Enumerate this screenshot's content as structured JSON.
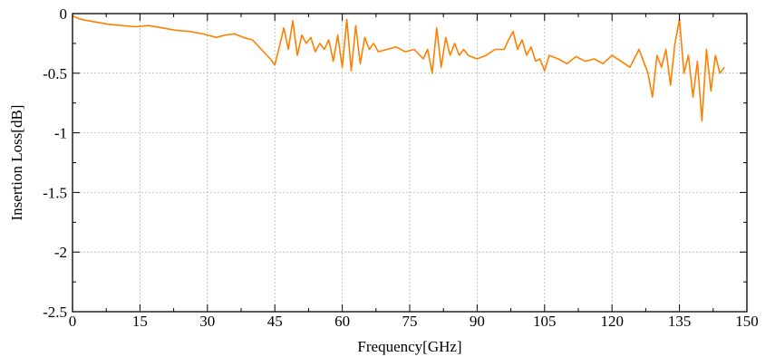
{
  "chart_data": {
    "type": "line",
    "title": "",
    "xlabel": "Frequency[GHz]",
    "ylabel": "Insertion Loss[dB]",
    "xlim": [
      0,
      150
    ],
    "ylim": [
      -2.5,
      0
    ],
    "xticks": [
      0,
      15,
      30,
      45,
      60,
      75,
      90,
      105,
      120,
      135,
      150
    ],
    "yticks": [
      0,
      -0.5,
      -1,
      -1.5,
      -2,
      -2.5
    ],
    "xtick_labels": [
      "0",
      "15",
      "30",
      "45",
      "60",
      "75",
      "90",
      "105",
      "120",
      "135",
      "150"
    ],
    "ytick_labels": [
      "0",
      "-0.5",
      "-1",
      "-1.5",
      "-2",
      "-2.5"
    ],
    "grid": true,
    "series": [
      {
        "color": "#ff8000",
        "x": [
          0,
          2,
          5,
          8,
          11,
          14,
          17,
          20,
          23,
          26,
          29,
          32,
          34,
          36,
          38,
          40,
          42,
          44,
          45,
          46,
          47,
          48,
          49,
          50,
          51,
          52,
          53,
          54,
          55,
          56,
          57,
          58,
          59,
          60,
          61,
          62,
          63,
          64,
          65,
          66,
          67,
          68,
          70,
          72,
          74,
          76,
          78,
          79,
          80,
          81,
          82,
          83,
          84,
          85,
          86,
          87,
          88,
          90,
          92,
          94,
          96,
          97,
          98,
          99,
          100,
          101,
          102,
          103,
          104,
          105,
          106,
          108,
          110,
          112,
          114,
          116,
          118,
          120,
          122,
          124,
          126,
          128,
          129,
          130,
          131,
          132,
          133,
          134,
          135,
          136,
          137,
          138,
          139,
          140,
          141,
          142,
          143,
          144,
          145
        ],
        "y": [
          -0.02,
          -0.05,
          -0.07,
          -0.09,
          -0.1,
          -0.11,
          -0.1,
          -0.12,
          -0.14,
          -0.15,
          -0.17,
          -0.2,
          -0.18,
          -0.17,
          -0.2,
          -0.22,
          -0.3,
          -0.38,
          -0.43,
          -0.28,
          -0.12,
          -0.3,
          -0.06,
          -0.35,
          -0.18,
          -0.25,
          -0.2,
          -0.32,
          -0.25,
          -0.3,
          -0.22,
          -0.4,
          -0.18,
          -0.45,
          -0.05,
          -0.48,
          -0.1,
          -0.42,
          -0.2,
          -0.3,
          -0.25,
          -0.32,
          -0.3,
          -0.28,
          -0.32,
          -0.3,
          -0.38,
          -0.3,
          -0.5,
          -0.12,
          -0.45,
          -0.2,
          -0.35,
          -0.25,
          -0.35,
          -0.3,
          -0.35,
          -0.38,
          -0.35,
          -0.3,
          -0.3,
          -0.22,
          -0.15,
          -0.3,
          -0.22,
          -0.35,
          -0.28,
          -0.4,
          -0.38,
          -0.48,
          -0.35,
          -0.38,
          -0.42,
          -0.36,
          -0.4,
          -0.38,
          -0.42,
          -0.35,
          -0.4,
          -0.45,
          -0.3,
          -0.5,
          -0.7,
          -0.35,
          -0.45,
          -0.3,
          -0.6,
          -0.25,
          -0.05,
          -0.5,
          -0.35,
          -0.7,
          -0.4,
          -0.9,
          -0.3,
          -0.65,
          -0.35,
          -0.5,
          -0.45
        ]
      }
    ]
  }
}
